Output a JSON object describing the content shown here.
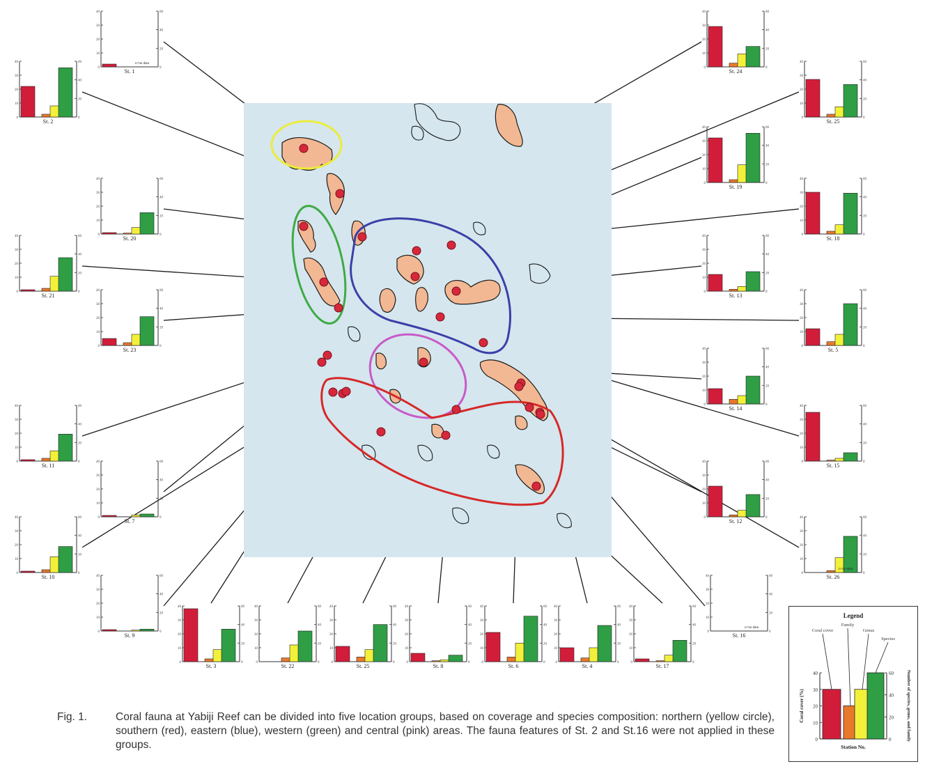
{
  "figure": {
    "colors": {
      "map_bg": "#d5e6ee",
      "reef": "#f2b893",
      "outline": "#1a1a1a",
      "site": "#d6283a",
      "coral_cover": "#d21d3a",
      "family": "#e8792c",
      "genus": "#f3f03a",
      "species": "#2f9e45",
      "group_northern": "#ecec3c",
      "group_western": "#3faa45",
      "group_eastern": "#3a3fa8",
      "group_central": "#c85ac8",
      "group_southern": "#d62828"
    }
  },
  "chart_data": {
    "type": "bar",
    "series_order": [
      "coral_cover",
      "family",
      "genus",
      "species"
    ],
    "left_axis": {
      "range": [
        0,
        40
      ],
      "ticks": [
        "40",
        "30",
        "20",
        "10",
        "0"
      ]
    },
    "right_axis": {
      "range": [
        0,
        60
      ],
      "ticks": [
        "60",
        "40",
        "20",
        "0"
      ]
    },
    "stations": [
      {
        "label": "St. 1",
        "values": [
          2,
          0,
          0,
          0
        ],
        "note": "n=no data"
      },
      {
        "label": "St. 2",
        "values": [
          22,
          3,
          12,
          53
        ]
      },
      {
        "label": "St. 20",
        "values": [
          1,
          1,
          7,
          23
        ]
      },
      {
        "label": "St. 21",
        "values": [
          1,
          3,
          16,
          36
        ]
      },
      {
        "label": "St. 23",
        "values": [
          5,
          3,
          12,
          31
        ]
      },
      {
        "label": "St. 11",
        "values": [
          1,
          3,
          11,
          29
        ]
      },
      {
        "label": "St. 7",
        "values": [
          1,
          0,
          2,
          3
        ]
      },
      {
        "label": "St. 10",
        "values": [
          1,
          3,
          17,
          28
        ]
      },
      {
        "label": "St. 9",
        "values": [
          1,
          0,
          1,
          2
        ]
      },
      {
        "label": "St. 3",
        "values": [
          38,
          3,
          13,
          35
        ]
      },
      {
        "label": "St. 22",
        "values": [
          0,
          4,
          18,
          33
        ]
      },
      {
        "label": "St. 25",
        "values": [
          11,
          5,
          13,
          40
        ]
      },
      {
        "label": "St. 8",
        "values": [
          6,
          1,
          2,
          7
        ]
      },
      {
        "label": "St. 6",
        "values": [
          21,
          5,
          20,
          49
        ]
      },
      {
        "label": "St. 4",
        "values": [
          10,
          4,
          15,
          39
        ]
      },
      {
        "label": "St. 17",
        "values": [
          2,
          1,
          7,
          23
        ]
      },
      {
        "label": "St. 16",
        "values": [
          0,
          0,
          0,
          0
        ],
        "note": "n=no data"
      },
      {
        "label": "St. 24",
        "values": [
          29,
          4,
          14,
          22
        ]
      },
      {
        "label": "St. 25",
        "values": [
          27,
          3,
          11,
          35
        ]
      },
      {
        "label": "St. 19",
        "values": [
          32,
          3,
          19,
          53
        ]
      },
      {
        "label": "St. 18",
        "values": [
          30,
          3,
          10,
          44
        ]
      },
      {
        "label": "St. 13",
        "values": [
          12,
          2,
          5,
          21
        ]
      },
      {
        "label": "St. 5",
        "values": [
          12,
          4,
          12,
          45
        ]
      },
      {
        "label": "St. 14",
        "values": [
          11,
          5,
          9,
          30
        ]
      },
      {
        "label": "St. 15",
        "values": [
          35,
          1,
          3,
          9
        ]
      },
      {
        "label": "St. 12",
        "values": [
          22,
          2,
          7,
          24
        ]
      },
      {
        "label": "St. 26",
        "values": [
          0,
          2,
          16,
          39
        ],
        "note": "n=no data"
      }
    ]
  },
  "legend": {
    "title": "Legend",
    "series": [
      {
        "key": "coral_cover",
        "label": "Coral cover",
        "value": 30,
        "axis": "left"
      },
      {
        "key": "family",
        "label": "Family",
        "value": 20,
        "axis": "left"
      },
      {
        "key": "genus",
        "label": "Genus",
        "value": 45,
        "axis": "right"
      },
      {
        "key": "species",
        "label": "Species",
        "value": 60,
        "axis": "right"
      }
    ],
    "left_axis_label": "Coral cover (%)",
    "right_axis_label": "Number of species, genus, and family",
    "x_label": "Station No.",
    "left_ticks": [
      "40",
      "30",
      "20",
      "10",
      "0"
    ],
    "right_ticks": [
      "60",
      "40",
      "20",
      "0"
    ]
  },
  "caption": {
    "number": "Fig. 1.",
    "text": "Coral fauna at Yabiji Reef can be divided into five location groups, based on coverage and species composition: northern (yellow circle), southern (red), eastern (blue), western (green) and central (pink) areas. The fauna features of St. 2 and St.16 were not applied in these groups."
  }
}
